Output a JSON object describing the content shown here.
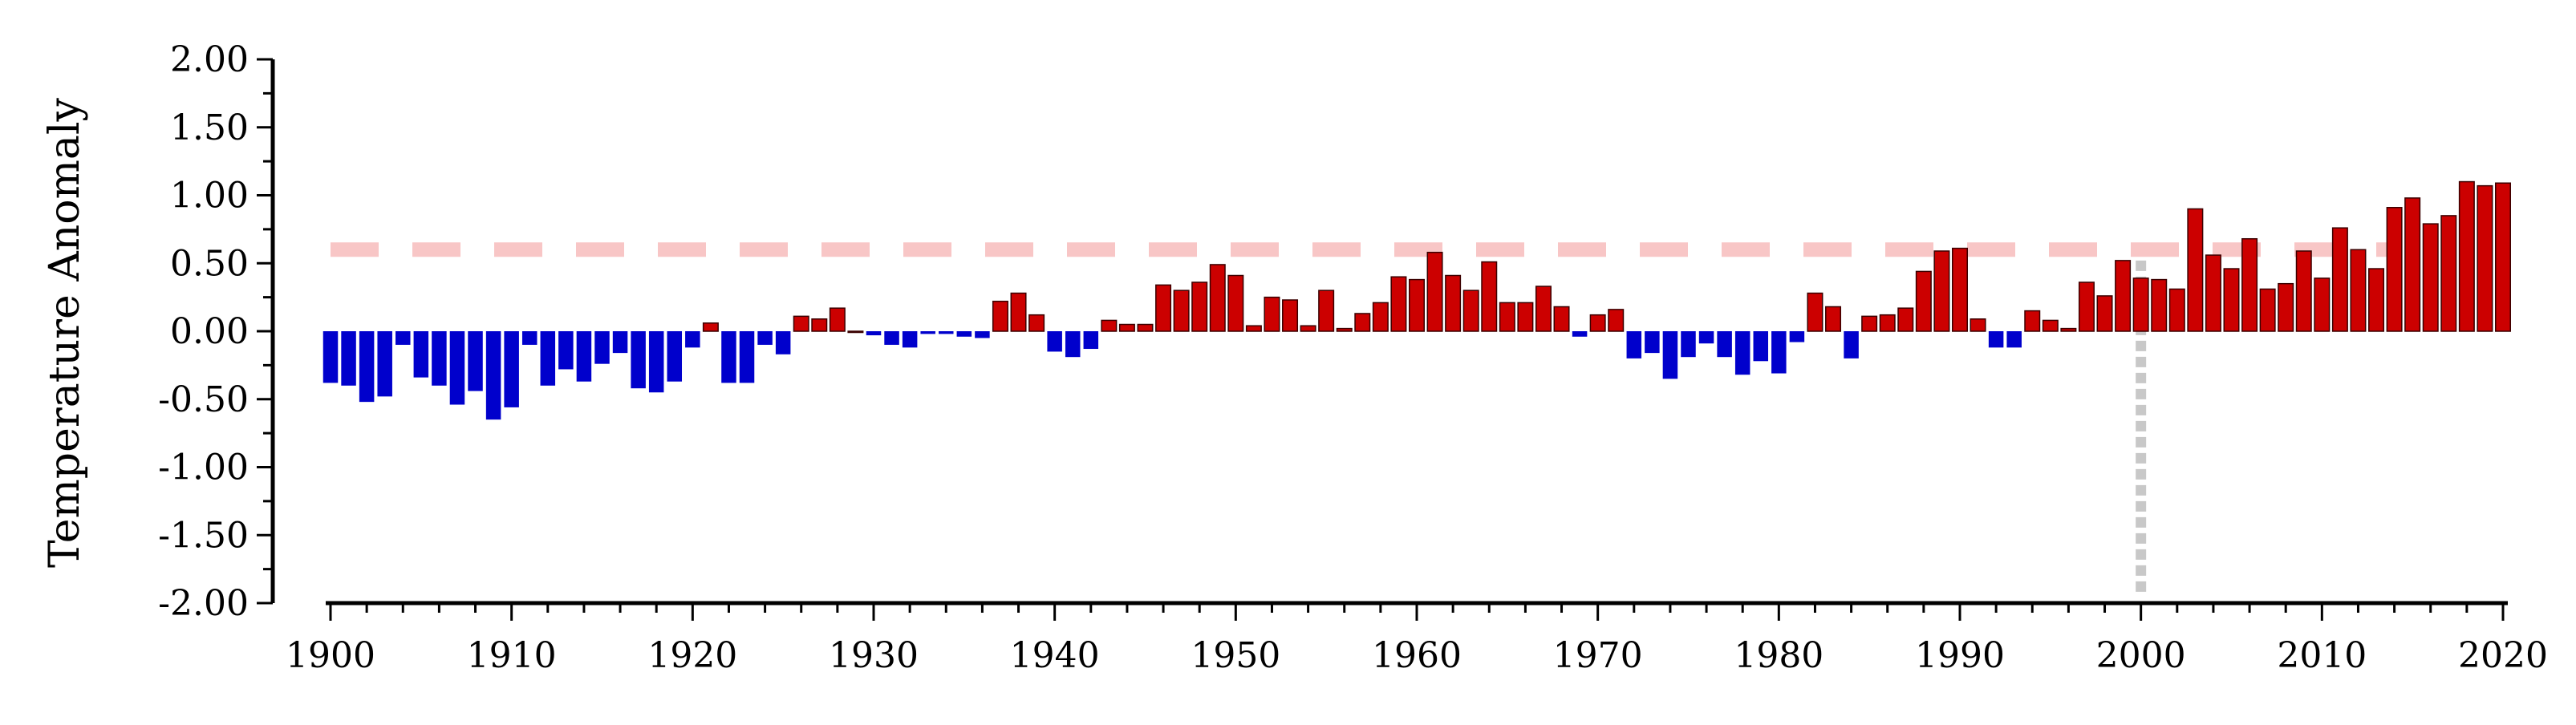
{
  "chart_data": {
    "type": "bar",
    "ylabel": "Temperature Anomaly",
    "xlabel": "",
    "title": "",
    "ylim": [
      -2.0,
      2.0
    ],
    "xlim": [
      1900,
      2020
    ],
    "y_ticks": [
      "2.00",
      "1.50",
      "1.00",
      "0.50",
      "0.00",
      "-0.50",
      "-1.00",
      "-1.50",
      "-2.00"
    ],
    "x_ticks": [
      "1900",
      "1910",
      "1920",
      "1930",
      "1940",
      "1950",
      "1960",
      "1970",
      "1980",
      "1990",
      "2000",
      "2010",
      "2020"
    ],
    "reference_line": {
      "value": 0.6,
      "style": "dashed",
      "color": "#f8c6c6"
    },
    "marker_line": {
      "x": 2000,
      "style": "dotted",
      "color": "#c8c8c8"
    },
    "colors": {
      "positive": "#cc0000",
      "negative": "#0000cc",
      "axis": "#000000"
    },
    "years": [
      1900,
      1901,
      1902,
      1903,
      1904,
      1905,
      1906,
      1907,
      1908,
      1909,
      1910,
      1911,
      1912,
      1913,
      1914,
      1915,
      1916,
      1917,
      1918,
      1919,
      1920,
      1921,
      1922,
      1923,
      1924,
      1925,
      1926,
      1927,
      1928,
      1929,
      1930,
      1931,
      1932,
      1933,
      1934,
      1935,
      1936,
      1937,
      1938,
      1939,
      1940,
      1941,
      1942,
      1943,
      1944,
      1945,
      1946,
      1947,
      1948,
      1949,
      1950,
      1951,
      1952,
      1953,
      1954,
      1955,
      1956,
      1957,
      1958,
      1959,
      1960,
      1961,
      1962,
      1963,
      1964,
      1965,
      1966,
      1967,
      1968,
      1969,
      1970,
      1971,
      1972,
      1973,
      1974,
      1975,
      1976,
      1977,
      1978,
      1979,
      1980,
      1981,
      1982,
      1983,
      1984,
      1985,
      1986,
      1987,
      1988,
      1989,
      1990,
      1991,
      1992,
      1993,
      1994,
      1995,
      1996,
      1997,
      1998,
      1999,
      2000,
      2001,
      2002,
      2003,
      2004,
      2005,
      2006,
      2007,
      2008,
      2009,
      2010,
      2011,
      2012,
      2013,
      2014,
      2015,
      2016,
      2017,
      2018,
      2019,
      2020
    ],
    "values": [
      -0.38,
      -0.4,
      -0.52,
      -0.48,
      -0.1,
      -0.34,
      -0.4,
      -0.54,
      -0.44,
      -0.65,
      -0.56,
      -0.1,
      -0.4,
      -0.28,
      -0.37,
      -0.24,
      -0.16,
      -0.42,
      -0.45,
      -0.37,
      -0.12,
      0.06,
      -0.38,
      -0.38,
      -0.1,
      -0.17,
      0.11,
      0.09,
      0.17,
      0.0,
      -0.03,
      -0.1,
      -0.12,
      -0.02,
      -0.02,
      -0.04,
      -0.05,
      0.22,
      0.28,
      0.12,
      -0.15,
      -0.19,
      -0.13,
      0.08,
      0.05,
      0.05,
      0.34,
      0.3,
      0.36,
      0.49,
      0.41,
      0.04,
      0.25,
      0.23,
      0.04,
      0.3,
      0.02,
      0.13,
      0.21,
      0.4,
      0.38,
      0.58,
      0.41,
      0.3,
      0.51,
      0.21,
      0.21,
      0.33,
      0.18,
      -0.04,
      0.12,
      0.16,
      -0.2,
      -0.16,
      -0.35,
      -0.19,
      -0.09,
      -0.19,
      -0.32,
      -0.22,
      -0.31,
      -0.08,
      0.28,
      0.18,
      -0.2,
      0.11,
      0.12,
      0.17,
      0.44,
      0.59,
      0.61,
      0.09,
      -0.12,
      -0.12,
      0.15,
      0.08,
      0.02,
      0.36,
      0.26,
      0.52,
      0.39,
      0.38,
      0.31,
      0.9,
      0.56,
      0.46,
      0.68,
      0.31,
      0.35,
      0.59,
      0.39,
      0.76,
      0.6,
      0.46,
      0.91,
      0.98,
      0.79,
      0.85,
      1.1,
      1.07,
      1.09
    ]
  }
}
